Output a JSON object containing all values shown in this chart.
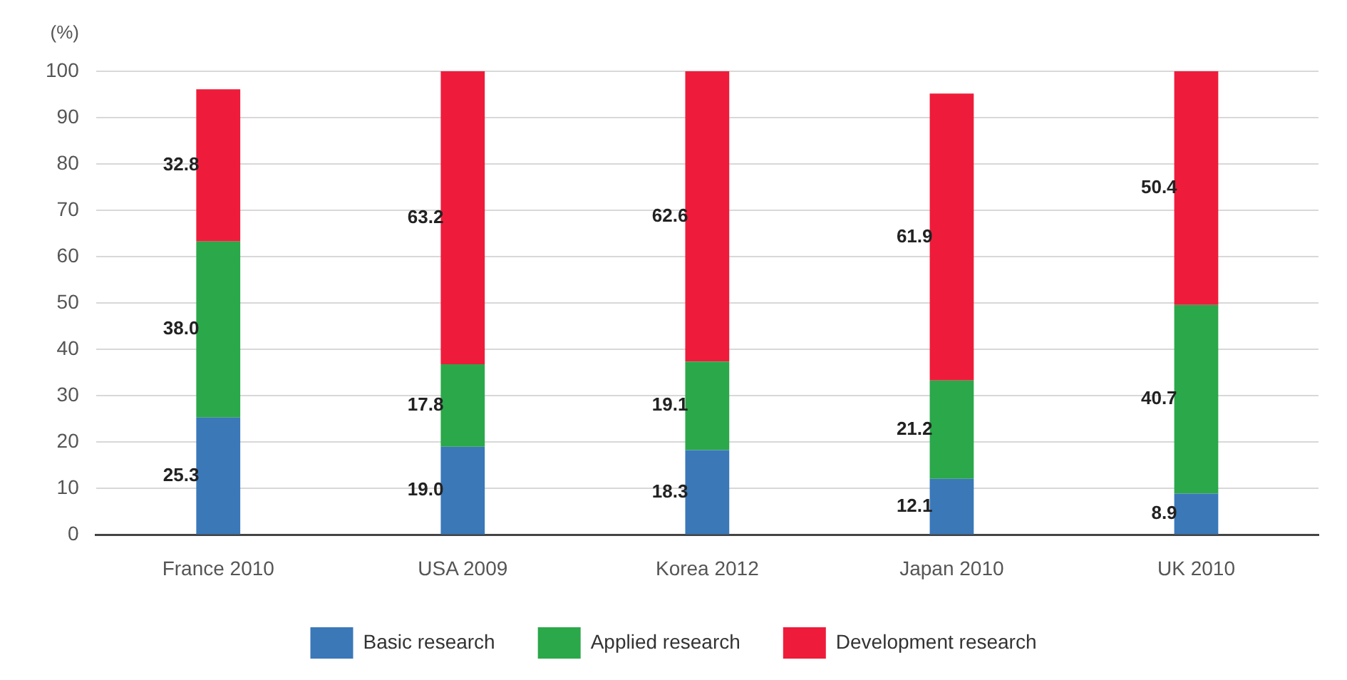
{
  "chart_data": {
    "type": "bar",
    "ylabel": "(%)",
    "categories": [
      "France 2010",
      "USA 2009",
      "Korea 2012",
      "Japan 2010",
      "UK 2010"
    ],
    "series": [
      {
        "name": "Basic research",
        "color": "#3a78b8",
        "values": [
          25.3,
          19.0,
          18.3,
          12.1,
          8.9
        ],
        "value_labels": [
          "25.3",
          "19.0",
          "18.3",
          "12.1",
          "8.9"
        ]
      },
      {
        "name": "Applied research",
        "color": "#2ba84a",
        "values": [
          38.0,
          17.8,
          19.1,
          21.2,
          40.7
        ],
        "value_labels": [
          "38.0",
          "17.8",
          "19.1",
          "21.2",
          "40.7"
        ]
      },
      {
        "name": "Development research",
        "color": "#ee1c3a",
        "values": [
          32.8,
          63.2,
          62.6,
          61.9,
          50.4
        ],
        "value_labels": [
          "32.8",
          "63.2",
          "62.6",
          "61.9",
          "50.4"
        ]
      }
    ],
    "stacked": true,
    "ylim": [
      0,
      100
    ],
    "yticks": [
      0,
      10,
      20,
      30,
      40,
      50,
      60,
      70,
      80,
      90,
      100
    ],
    "grid": "y",
    "legend": "bottom"
  }
}
